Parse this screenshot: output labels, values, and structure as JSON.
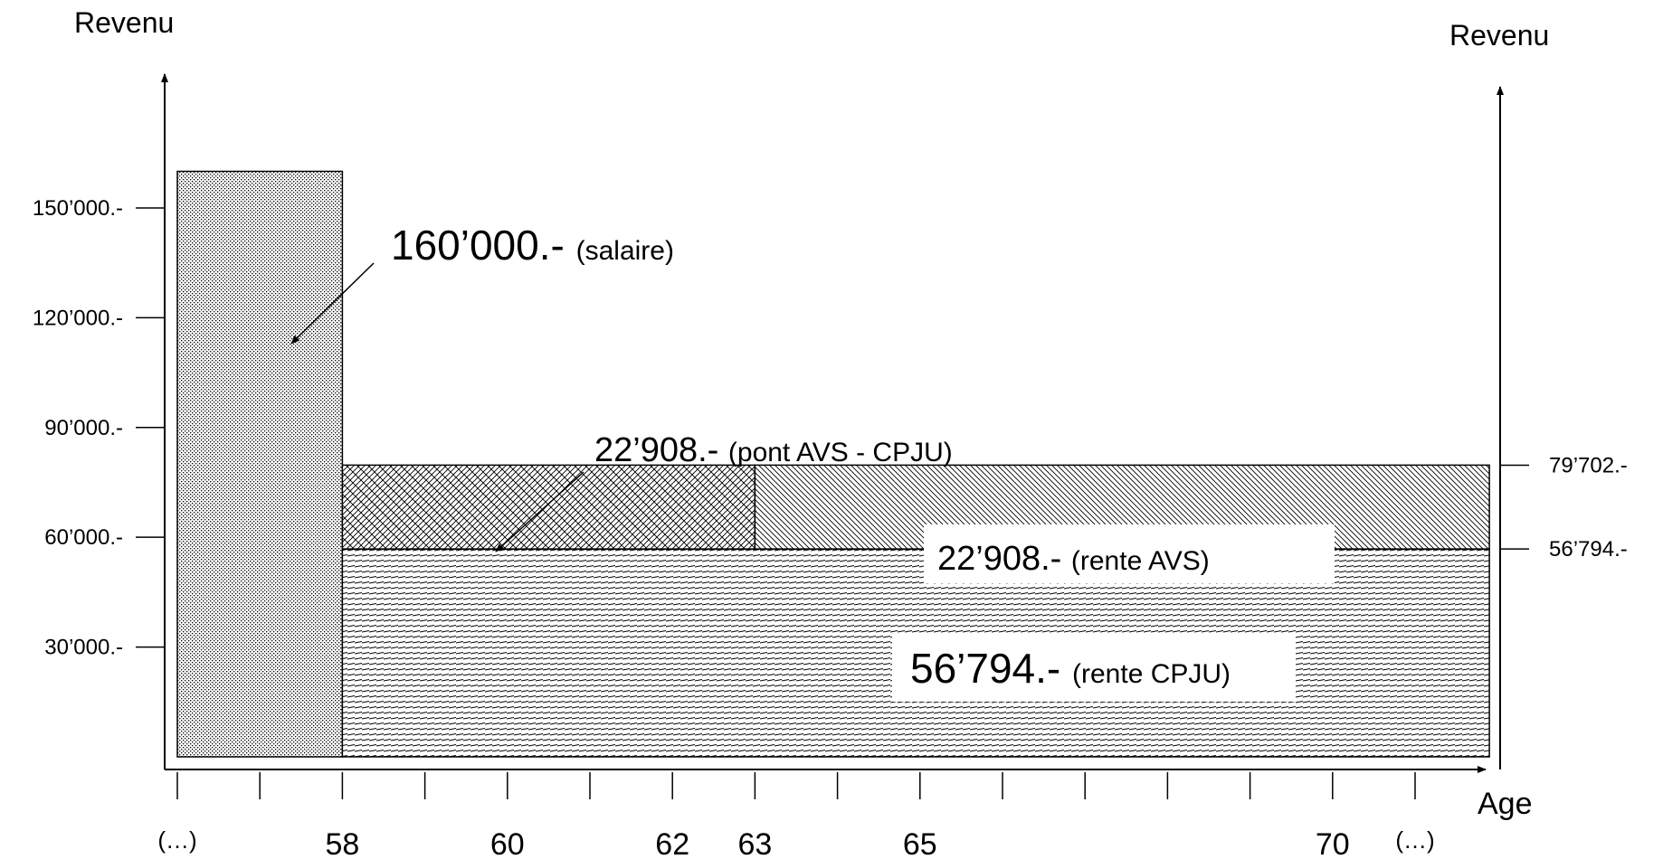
{
  "chart_data": {
    "type": "bar",
    "left_axis_title": "Revenu",
    "right_axis_title": "Revenu",
    "x_axis_title": "Age",
    "x": [
      56,
      57,
      58,
      59,
      60,
      61,
      62,
      63,
      64,
      65,
      66,
      67,
      68,
      69,
      70,
      71
    ],
    "x_tick_labels": [
      {
        "age": 56,
        "label": "(…)"
      },
      {
        "age": 58,
        "label": "58"
      },
      {
        "age": 60,
        "label": "60"
      },
      {
        "age": 62,
        "label": "62"
      },
      {
        "age": 63,
        "label": "63"
      },
      {
        "age": 65,
        "label": "65"
      },
      {
        "age": 70,
        "label": "70"
      },
      {
        "age": 71,
        "label": "(…)"
      }
    ],
    "left_y_ticks": [
      {
        "value": 30000,
        "label": "30’000.-"
      },
      {
        "value": 60000,
        "label": "60’000.-"
      },
      {
        "value": 90000,
        "label": "90’000.-"
      },
      {
        "value": 120000,
        "label": "120’000.-"
      },
      {
        "value": 150000,
        "label": "150’000.-"
      }
    ],
    "right_y_ticks": [
      {
        "value": 56794,
        "label": "56’794.-"
      },
      {
        "value": 79702,
        "label": "79’702.-"
      }
    ],
    "segments": [
      {
        "id": "salaire",
        "x_from": 56,
        "x_to": 58,
        "y_from": 0,
        "y_to": 160000,
        "pattern": "dots",
        "amount": "160’000.-",
        "desc": "(salaire)"
      },
      {
        "id": "rente-cpju",
        "x_from": 58,
        "x_to": 71.9,
        "y_from": 0,
        "y_to": 56794,
        "pattern": "hlines",
        "amount": "56’794.-",
        "desc": "(rente CPJU)"
      },
      {
        "id": "pont-avs",
        "x_from": 58,
        "x_to": 63,
        "y_from": 56794,
        "y_to": 79702,
        "pattern": "weave",
        "amount": "22’908.-",
        "desc": "(pont AVS - CPJU)"
      },
      {
        "id": "rente-avs",
        "x_from": 63,
        "x_to": 71.9,
        "y_from": 56794,
        "y_to": 79702,
        "pattern": "diag",
        "amount": "22’908.-",
        "desc": "(rente AVS)"
      }
    ]
  }
}
